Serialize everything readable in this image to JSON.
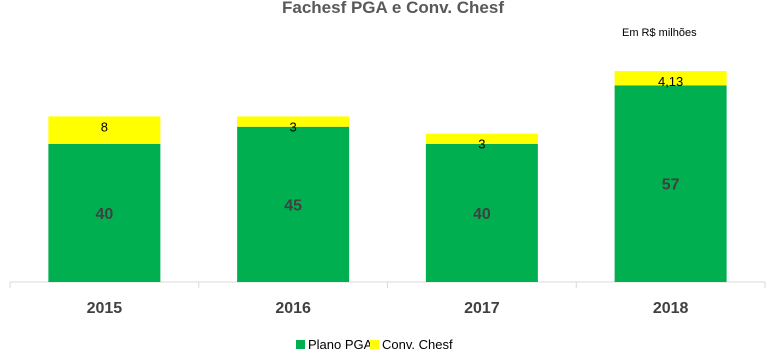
{
  "chart_data": {
    "type": "bar",
    "stacked": true,
    "title": "Fachesf PGA e Conv. Chesf",
    "unit_note": "Em R$ milhões",
    "categories": [
      "2015",
      "2016",
      "2017",
      "2018"
    ],
    "series": [
      {
        "name": "Plano PGA",
        "color": "#00B050",
        "values": [
          40,
          45,
          40,
          57
        ],
        "labels": [
          "40",
          "45",
          "40",
          "57"
        ]
      },
      {
        "name": "Conv. Chesf",
        "color": "#FFFF00",
        "values": [
          8,
          3,
          3,
          4.13
        ],
        "labels": [
          "8",
          "3",
          "3",
          "4,13"
        ]
      }
    ],
    "legend_position": "bottom",
    "grid": false
  }
}
